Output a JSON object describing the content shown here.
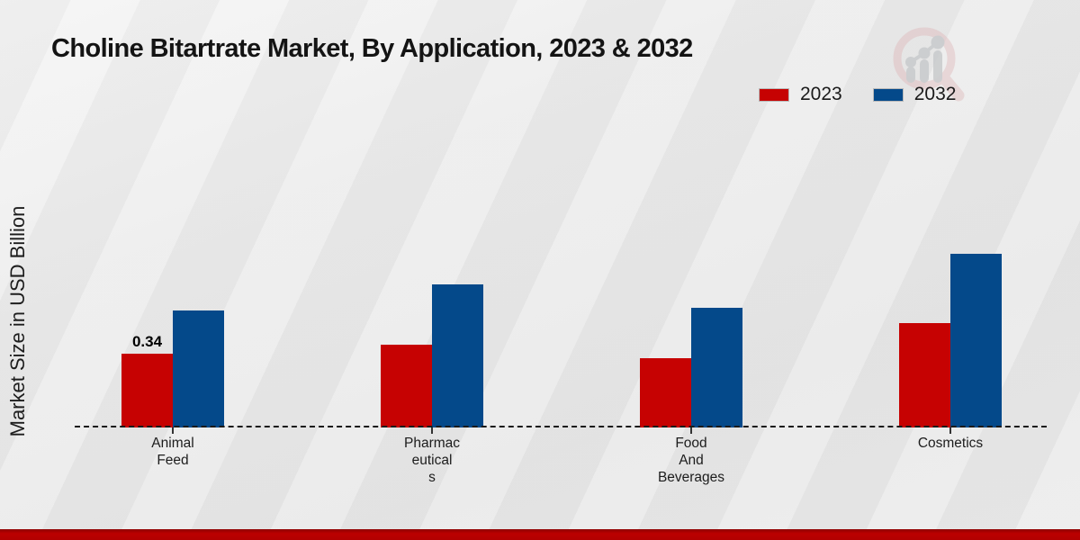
{
  "header": {
    "title": "Choline Bitartrate Market, By Application, 2023 & 2032"
  },
  "legend": {
    "items": [
      {
        "label": "2023",
        "color": "#c60202"
      },
      {
        "label": "2032",
        "color": "#04498a"
      }
    ]
  },
  "chart_data": {
    "type": "bar",
    "title": "Choline Bitartrate Market, By Application, 2023 & 2032",
    "categories": [
      "Animal Feed",
      "Pharmaceuticals",
      "Food And Beverages",
      "Cosmetics"
    ],
    "category_label_lines": [
      [
        "Animal",
        "Feed"
      ],
      [
        "Pharmac",
        "eutical",
        "s"
      ],
      [
        "Food",
        "And",
        "Beverages"
      ],
      [
        "Cosmetics"
      ]
    ],
    "series": [
      {
        "name": "2023",
        "color": "#c60202",
        "values": [
          0.34,
          0.38,
          0.32,
          0.48
        ]
      },
      {
        "name": "2032",
        "color": "#04498a",
        "values": [
          0.54,
          0.66,
          0.55,
          0.8
        ]
      }
    ],
    "data_labels": [
      {
        "series": "2023",
        "category": "Animal Feed",
        "text": "0.34"
      }
    ],
    "xlabel": "",
    "ylabel": "Market Size in USD Billion",
    "ylim": [
      0,
      1.4
    ],
    "grid": false,
    "legend_position": "top-right",
    "baseline_style": "dashed",
    "bar_orientation": "vertical"
  },
  "watermark": {
    "name": "market-research-future-logo"
  }
}
